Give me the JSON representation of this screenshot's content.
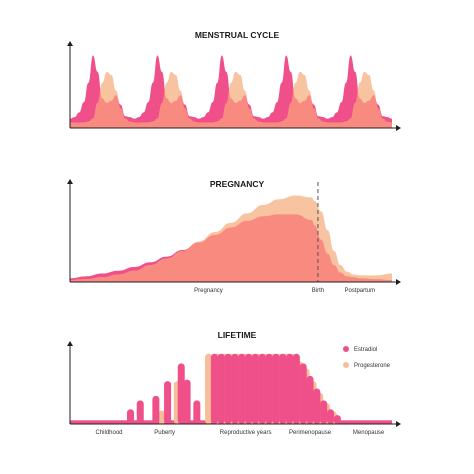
{
  "colors": {
    "estradiol": "#f0508a",
    "progesterone": "#f6be98",
    "overlap": "#f98a80",
    "axis": "#1f1f1f",
    "birth_line": "#555555"
  },
  "legend": [
    {
      "name": "Estradiol",
      "color": "#f0508a"
    },
    {
      "name": "Progesterone",
      "color": "#f6be98"
    }
  ],
  "chart_data": [
    {
      "type": "area",
      "title": "MENSTRUAL CYCLE",
      "xlabel": "",
      "ylabel": "",
      "ylim": [
        0,
        1
      ],
      "grid": false,
      "x": [
        0,
        2,
        4,
        6,
        8,
        10,
        12,
        14,
        16,
        18,
        20,
        22,
        24,
        26,
        28,
        30,
        32,
        34,
        36,
        38,
        40,
        42,
        44,
        46,
        48,
        50,
        52,
        54,
        56,
        58,
        60,
        62,
        64,
        66,
        68,
        70,
        72,
        74,
        76,
        78,
        80,
        82,
        84,
        86,
        88,
        90,
        92,
        94,
        96,
        98,
        100,
        102,
        104,
        106,
        108,
        110,
        112,
        114,
        116,
        118,
        120,
        122,
        124,
        126,
        128,
        130,
        132,
        134,
        136,
        138,
        140
      ],
      "series": [
        {
          "name": "Estradiol",
          "values": [
            0.12,
            0.14,
            0.2,
            0.33,
            0.58,
            0.93,
            0.72,
            0.38,
            0.32,
            0.35,
            0.42,
            0.3,
            0.15,
            0.14,
            0.12,
            0.14,
            0.2,
            0.33,
            0.58,
            0.93,
            0.72,
            0.38,
            0.32,
            0.35,
            0.42,
            0.3,
            0.15,
            0.14,
            0.12,
            0.14,
            0.2,
            0.33,
            0.58,
            0.93,
            0.72,
            0.38,
            0.32,
            0.35,
            0.42,
            0.3,
            0.15,
            0.14,
            0.12,
            0.14,
            0.2,
            0.33,
            0.58,
            0.93,
            0.72,
            0.38,
            0.32,
            0.35,
            0.42,
            0.3,
            0.15,
            0.14,
            0.12,
            0.14,
            0.2,
            0.33,
            0.58,
            0.93,
            0.72,
            0.38,
            0.32,
            0.35,
            0.42,
            0.3,
            0.15,
            0.14,
            0.12
          ]
        },
        {
          "name": "Progesterone",
          "values": [
            0.07,
            0.07,
            0.07,
            0.07,
            0.08,
            0.12,
            0.32,
            0.58,
            0.72,
            0.68,
            0.48,
            0.25,
            0.12,
            0.08,
            0.07,
            0.07,
            0.07,
            0.07,
            0.08,
            0.12,
            0.32,
            0.58,
            0.72,
            0.68,
            0.48,
            0.25,
            0.12,
            0.08,
            0.07,
            0.07,
            0.07,
            0.07,
            0.08,
            0.12,
            0.32,
            0.58,
            0.72,
            0.68,
            0.48,
            0.25,
            0.12,
            0.08,
            0.07,
            0.07,
            0.07,
            0.07,
            0.08,
            0.12,
            0.32,
            0.58,
            0.72,
            0.68,
            0.48,
            0.25,
            0.12,
            0.08,
            0.07,
            0.07,
            0.07,
            0.07,
            0.08,
            0.12,
            0.32,
            0.58,
            0.72,
            0.68,
            0.48,
            0.25,
            0.12,
            0.08,
            0.07
          ]
        }
      ]
    },
    {
      "type": "area",
      "title": "PREGNANCY",
      "xlabel": "",
      "ylabel": "",
      "ylim": [
        0,
        1
      ],
      "grid": false,
      "x": [
        0,
        5,
        10,
        15,
        20,
        25,
        30,
        35,
        40,
        45,
        50,
        55,
        60,
        65,
        70,
        75,
        76,
        78,
        80,
        82,
        84,
        86,
        88,
        90,
        95,
        100
      ],
      "series": [
        {
          "name": "Estradiol",
          "values": [
            0.04,
            0.06,
            0.09,
            0.12,
            0.16,
            0.21,
            0.27,
            0.34,
            0.42,
            0.5,
            0.58,
            0.65,
            0.7,
            0.72,
            0.72,
            0.66,
            0.6,
            0.45,
            0.3,
            0.18,
            0.1,
            0.06,
            0.05,
            0.04,
            0.03,
            0.02
          ]
        },
        {
          "name": "Progesterone",
          "values": [
            0.02,
            0.03,
            0.05,
            0.08,
            0.12,
            0.18,
            0.25,
            0.33,
            0.43,
            0.53,
            0.63,
            0.73,
            0.82,
            0.88,
            0.92,
            0.9,
            0.86,
            0.75,
            0.55,
            0.33,
            0.18,
            0.11,
            0.08,
            0.07,
            0.07,
            0.09
          ]
        }
      ],
      "x_tick_labels": [
        {
          "x": 43,
          "label": "Pregnancy"
        },
        {
          "x": 77,
          "label": "Birth"
        },
        {
          "x": 90,
          "label": "Postpartum"
        }
      ],
      "annotations": [
        {
          "type": "vline",
          "x": 77,
          "style": "dashed"
        }
      ]
    },
    {
      "type": "bar",
      "title": "LIFETIME",
      "xlabel": "",
      "ylabel": "",
      "ylim": [
        0,
        1
      ],
      "grid": false,
      "legend": "top-right",
      "baseline": 0.05,
      "series": [
        {
          "name": "Estradiol",
          "points": [
            [
              62,
              0.2
            ],
            [
              72,
              0.32
            ],
            [
              88,
              0.38
            ],
            [
              100,
              0.58
            ],
            [
              114,
              0.82
            ],
            [
              120,
              0.6
            ],
            [
              130,
              0.32
            ],
            [
              148,
              0.95
            ],
            [
              155,
              0.95
            ],
            [
              162,
              0.95
            ],
            [
              169,
              0.95
            ],
            [
              176,
              0.95
            ],
            [
              183,
              0.95
            ],
            [
              190,
              0.95
            ],
            [
              197,
              0.95
            ],
            [
              204,
              0.95
            ],
            [
              211,
              0.95
            ],
            [
              218,
              0.95
            ],
            [
              225,
              0.95
            ],
            [
              232,
              0.95
            ],
            [
              239,
              0.82
            ],
            [
              246,
              0.65
            ],
            [
              253,
              0.48
            ],
            [
              260,
              0.32
            ],
            [
              267,
              0.2
            ],
            [
              274,
              0.12
            ]
          ]
        },
        {
          "name": "Progesterone",
          "points": [
            [
              94,
              0.18
            ],
            [
              110,
              0.58
            ],
            [
              142,
              0.95
            ],
            [
              151,
              0.95
            ],
            [
              158,
              0.95
            ],
            [
              165,
              0.95
            ],
            [
              172,
              0.95
            ],
            [
              179,
              0.95
            ],
            [
              186,
              0.95
            ],
            [
              193,
              0.95
            ],
            [
              200,
              0.95
            ],
            [
              207,
              0.95
            ],
            [
              214,
              0.95
            ],
            [
              221,
              0.95
            ],
            [
              228,
              0.95
            ],
            [
              235,
              0.85
            ],
            [
              242,
              0.75
            ],
            [
              249,
              0.58
            ],
            [
              256,
              0.42
            ],
            [
              263,
              0.28
            ],
            [
              270,
              0.17
            ]
          ]
        }
      ],
      "x_tick_labels": [
        {
          "x": 40,
          "label": "Childhood"
        },
        {
          "x": 97,
          "label": "Puberty"
        },
        {
          "x": 180,
          "label": "Reproductive years"
        },
        {
          "x": 246,
          "label": "Perimenopause"
        },
        {
          "x": 306,
          "label": "Menopause"
        }
      ]
    }
  ]
}
